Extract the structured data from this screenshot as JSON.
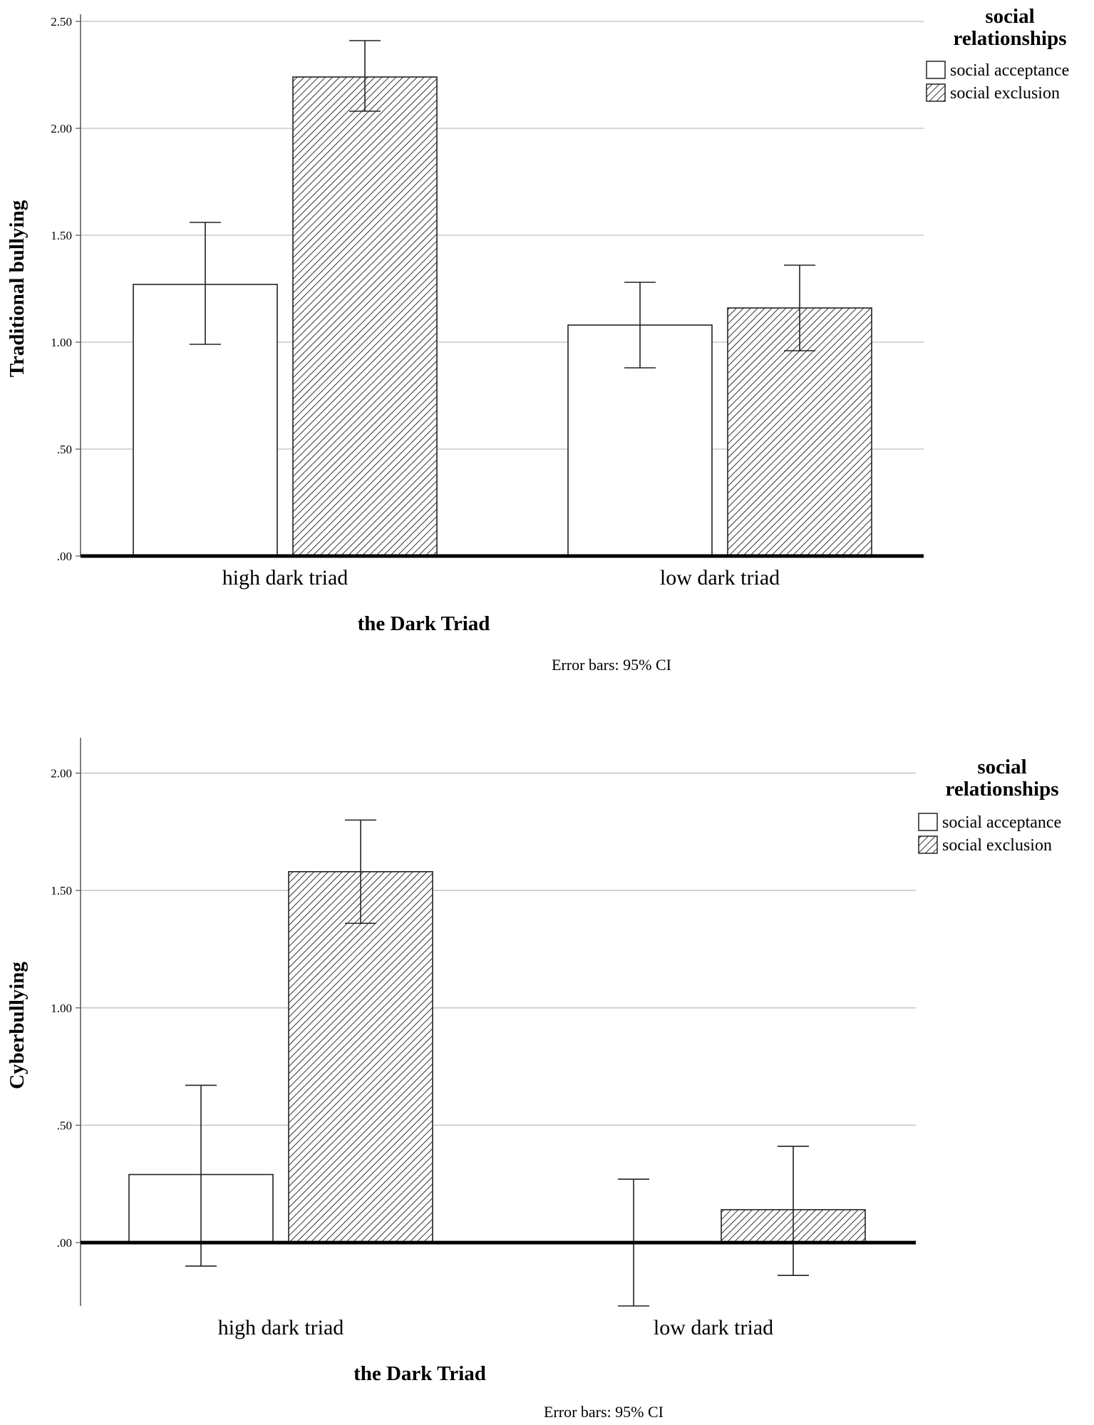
{
  "chart_data": [
    {
      "type": "bar",
      "title": "",
      "xlabel": "the Dark Triad",
      "ylabel": "Traditional bullying",
      "ylim": [
        0,
        2.5
      ],
      "yticks": [
        {
          "value": 0,
          "label": ".00"
        },
        {
          "value": 0.5,
          "label": ".50"
        },
        {
          "value": 1.0,
          "label": "1.00"
        },
        {
          "value": 1.5,
          "label": "1.50"
        },
        {
          "value": 2.0,
          "label": "2.00"
        },
        {
          "value": 2.5,
          "label": "2.50"
        }
      ],
      "grid": true,
      "categories": [
        "high dark triad",
        "low dark triad"
      ],
      "legend_title": "social relationships",
      "legend_position": "top-right",
      "series": [
        {
          "name": "social acceptance",
          "pattern": "plain",
          "values": [
            1.27,
            1.08
          ],
          "ci_low": [
            0.99,
            0.88
          ],
          "ci_high": [
            1.56,
            1.28
          ]
        },
        {
          "name": "social exclusion",
          "pattern": "hatched",
          "values": [
            2.24,
            1.16
          ],
          "ci_low": [
            2.08,
            0.96
          ],
          "ci_high": [
            2.41,
            1.36
          ]
        }
      ],
      "note": "Error bars: 95% CI"
    },
    {
      "type": "bar",
      "title": "",
      "xlabel": "the Dark Triad",
      "ylabel": "Cyberbullying",
      "ylim": [
        -0.27,
        2.12
      ],
      "yticks": [
        {
          "value": 0,
          "label": ".00"
        },
        {
          "value": 0.5,
          "label": ".50"
        },
        {
          "value": 1.0,
          "label": "1.00"
        },
        {
          "value": 1.5,
          "label": "1.50"
        },
        {
          "value": 2.0,
          "label": "2.00"
        }
      ],
      "grid": true,
      "categories": [
        "high dark triad",
        "low dark triad"
      ],
      "legend_title": "social relationships",
      "legend_position": "top-right",
      "series": [
        {
          "name": "social acceptance",
          "pattern": "plain",
          "values": [
            0.29,
            0.0
          ],
          "ci_low": [
            -0.1,
            -0.27
          ],
          "ci_high": [
            0.67,
            0.27
          ]
        },
        {
          "name": "social exclusion",
          "pattern": "hatched",
          "values": [
            1.58,
            0.14
          ],
          "ci_low": [
            1.36,
            -0.14
          ],
          "ci_high": [
            1.8,
            0.41
          ]
        }
      ],
      "note": "Error bars: 95% CI"
    }
  ]
}
